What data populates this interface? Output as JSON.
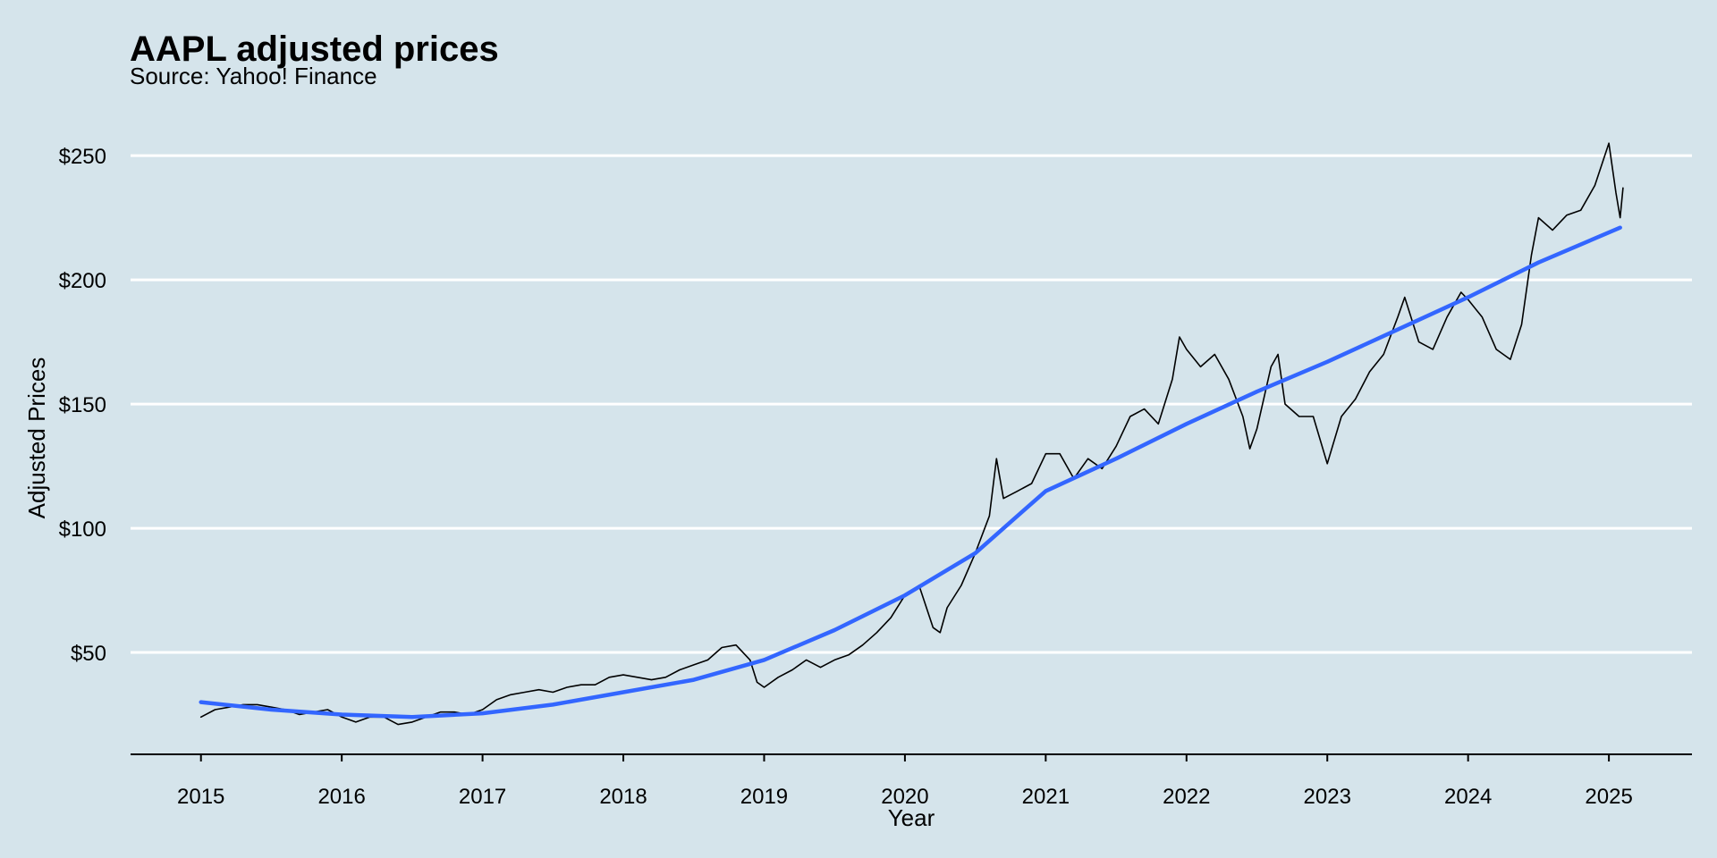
{
  "chart_data": {
    "type": "line",
    "title": "AAPL adjusted prices",
    "subtitle": "Source: Yahoo! Finance",
    "x_label": "Year",
    "y_label": "Adjusted Prices",
    "series": [
      {
        "name": "AAPL",
        "color": "#000000",
        "x": [
          2015.0,
          2015.1,
          2015.2,
          2015.3,
          2015.4,
          2015.5,
          2015.6,
          2015.7,
          2015.8,
          2015.9,
          2016.0,
          2016.1,
          2016.2,
          2016.3,
          2016.4,
          2016.5,
          2016.6,
          2016.7,
          2016.8,
          2016.9,
          2017.0,
          2017.1,
          2017.2,
          2017.3,
          2017.4,
          2017.5,
          2017.6,
          2017.7,
          2017.8,
          2017.9,
          2018.0,
          2018.1,
          2018.2,
          2018.3,
          2018.4,
          2018.5,
          2018.6,
          2018.7,
          2018.8,
          2018.9,
          2018.95,
          2019.0,
          2019.1,
          2019.2,
          2019.3,
          2019.4,
          2019.5,
          2019.6,
          2019.7,
          2019.8,
          2019.9,
          2020.0,
          2020.1,
          2020.2,
          2020.25,
          2020.3,
          2020.4,
          2020.5,
          2020.6,
          2020.65,
          2020.7,
          2020.8,
          2020.9,
          2021.0,
          2021.1,
          2021.2,
          2021.3,
          2021.4,
          2021.5,
          2021.6,
          2021.7,
          2021.8,
          2021.9,
          2021.95,
          2022.0,
          2022.1,
          2022.2,
          2022.3,
          2022.4,
          2022.45,
          2022.5,
          2022.6,
          2022.65,
          2022.7,
          2022.8,
          2022.9,
          2023.0,
          2023.1,
          2023.2,
          2023.3,
          2023.4,
          2023.5,
          2023.55,
          2023.65,
          2023.75,
          2023.85,
          2023.95,
          2024.0,
          2024.1,
          2024.2,
          2024.3,
          2024.38,
          2024.45,
          2024.5,
          2024.6,
          2024.7,
          2024.8,
          2024.9,
          2025.0,
          2025.05,
          2025.08,
          2025.1
        ],
        "values": [
          24,
          27,
          28,
          29,
          29,
          28,
          27,
          25,
          26,
          27,
          24,
          22,
          24,
          24,
          21,
          22,
          24,
          26,
          26,
          25,
          27,
          31,
          33,
          34,
          35,
          34,
          36,
          37,
          37,
          40,
          41,
          40,
          39,
          40,
          43,
          45,
          47,
          52,
          53,
          47,
          38,
          36,
          40,
          43,
          47,
          44,
          47,
          49,
          53,
          58,
          64,
          73,
          77,
          60,
          58,
          68,
          77,
          90,
          105,
          128,
          112,
          115,
          118,
          130,
          130,
          120,
          128,
          124,
          133,
          145,
          148,
          142,
          160,
          177,
          172,
          165,
          170,
          160,
          145,
          132,
          140,
          165,
          170,
          150,
          145,
          145,
          126,
          145,
          152,
          163,
          170,
          185,
          193,
          175,
          172,
          185,
          195,
          192,
          185,
          172,
          168,
          182,
          210,
          225,
          220,
          226,
          228,
          238,
          255,
          235,
          225,
          237
        ]
      },
      {
        "name": "Trend",
        "color": "#3366ff",
        "x": [
          2015.0,
          2015.5,
          2016.0,
          2016.5,
          2017.0,
          2017.5,
          2018.0,
          2018.5,
          2019.0,
          2019.5,
          2020.0,
          2020.5,
          2021.0,
          2021.5,
          2022.0,
          2022.5,
          2023.0,
          2023.5,
          2024.0,
          2024.5,
          2025.08
        ],
        "values": [
          30,
          27,
          25,
          24,
          25.5,
          29,
          34,
          39,
          47,
          59,
          73,
          90,
          115,
          128,
          142,
          155,
          167,
          180,
          193,
          207,
          221
        ]
      }
    ],
    "xlim": [
      2014.5,
      2025.59
    ],
    "xticks": [
      2015,
      2016,
      2017,
      2018,
      2019,
      2020,
      2021,
      2022,
      2023,
      2024,
      2025
    ],
    "ylim": [
      9,
      263
    ],
    "yticks": [
      {
        "value": 50,
        "label": "$50"
      },
      {
        "value": 100,
        "label": "$100"
      },
      {
        "value": 150,
        "label": "$150"
      },
      {
        "value": 200,
        "label": "$200"
      },
      {
        "value": 250,
        "label": "$250"
      }
    ],
    "grid": true
  }
}
